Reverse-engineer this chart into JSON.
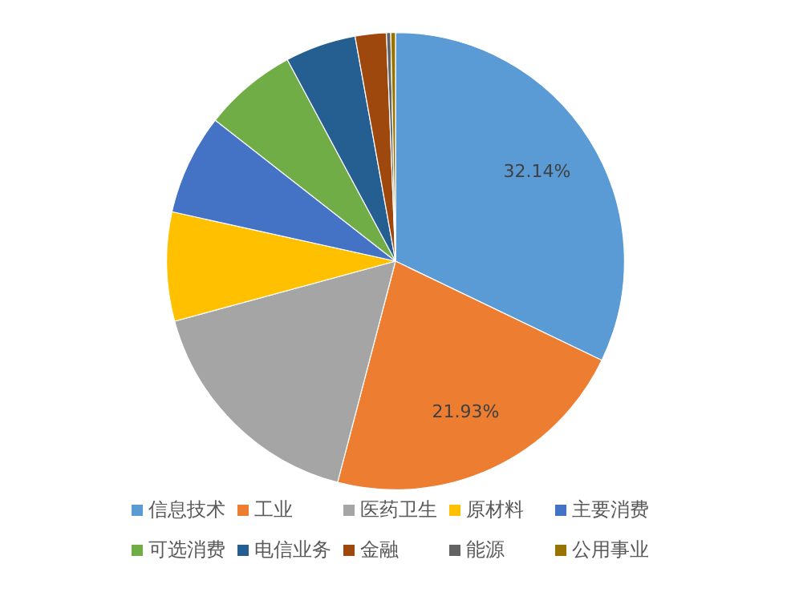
{
  "chart_data": {
    "type": "pie",
    "categories": [
      "信息技术",
      "工业",
      "医药卫生",
      "原材料",
      "主要消费",
      "可选消费",
      "电信业务",
      "金融",
      "能源",
      "公用事业"
    ],
    "values": [
      32.14,
      21.93,
      16.7,
      7.7,
      7.1,
      6.6,
      5.0,
      2.2,
      0.3,
      0.33
    ],
    "colors": [
      "#5b9bd5",
      "#ed7d31",
      "#a5a5a5",
      "#ffc000",
      "#4472c4",
      "#70ad47",
      "#255e91",
      "#9e480e",
      "#636363",
      "#997300"
    ],
    "value_labels": [
      "32.14%",
      "21.93%",
      null,
      null,
      null,
      null,
      null,
      null,
      null,
      null
    ],
    "legend": "bottom"
  }
}
